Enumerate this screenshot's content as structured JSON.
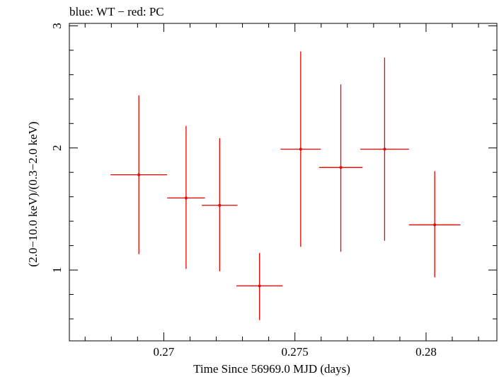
{
  "chart_data": {
    "type": "scatter",
    "title": "blue: WT − red: PC",
    "xlabel": "Time Since 56969.0 MJD (days)",
    "ylabel": "(2.0−10.0 keV)/(0.3−2.0 keV)",
    "xlim": [
      0.2664,
      0.2827
    ],
    "ylim": [
      0.42,
      3.02
    ],
    "x_ticks": [
      {
        "value": 0.27,
        "label": "0.27"
      },
      {
        "value": 0.275,
        "label": "0.275"
      },
      {
        "value": 0.28,
        "label": "0.28"
      }
    ],
    "y_ticks": [
      {
        "value": 1,
        "label": "1"
      },
      {
        "value": 2,
        "label": "2"
      },
      {
        "value": 3,
        "label": "3"
      }
    ],
    "series": [
      {
        "name": "PC",
        "color": "#ee0000",
        "points": [
          {
            "x": 0.26905,
            "xerr": 0.00108,
            "y": 1.78,
            "ylo": 1.13,
            "yhi": 2.43
          },
          {
            "x": 0.27085,
            "xerr": 0.00072,
            "y": 1.59,
            "ylo": 1.01,
            "yhi": 2.18
          },
          {
            "x": 0.27213,
            "xerr": 0.00068,
            "y": 1.53,
            "ylo": 0.99,
            "yhi": 2.08
          },
          {
            "x": 0.27365,
            "xerr": 0.00088,
            "y": 0.87,
            "ylo": 0.59,
            "yhi": 1.14
          },
          {
            "x": 0.27522,
            "xerr": 0.00077,
            "y": 1.99,
            "ylo": 1.19,
            "yhi": 2.79
          },
          {
            "x": 0.27675,
            "xerr": 0.00083,
            "y": 1.84,
            "ylo": 1.15,
            "yhi": 2.52
          },
          {
            "x": 0.27842,
            "xerr": 0.00093,
            "y": 1.99,
            "ylo": 1.24,
            "yhi": 2.74
          },
          {
            "x": 0.28033,
            "xerr": 0.00098,
            "y": 1.37,
            "ylo": 0.94,
            "yhi": 1.81
          }
        ]
      }
    ]
  }
}
